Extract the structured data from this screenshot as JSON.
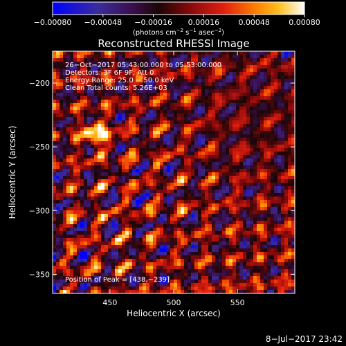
{
  "chart_data": {
    "type": "heatmap",
    "title": "Reconstructed RHESSI Image",
    "xlabel": "Heliocentric X (arcsec)",
    "ylabel": "Heliocentric Y (arcsec)",
    "xlim": [
      405,
      595
    ],
    "ylim": [
      -365,
      -175
    ],
    "x_ticks": [
      450,
      500,
      550
    ],
    "x_tick_labels": [
      "450",
      "500",
      "550"
    ],
    "y_ticks": [
      -200,
      -250,
      -300,
      -350
    ],
    "y_tick_labels": [
      "−200",
      "−250",
      "−300",
      "−350"
    ],
    "colorbar": {
      "min": -0.0008,
      "max": 0.0008,
      "ticks": [
        -0.0008,
        -0.00048,
        -0.00016,
        0.00016,
        0.00048,
        0.0008
      ],
      "tick_labels": [
        "−0.00080",
        "−0.00048",
        "−0.00016",
        "0.00016",
        "0.00048",
        "0.00080"
      ],
      "units_prefix": "(photons cm",
      "units_exp1": "−2",
      "units_mid1": " s",
      "units_exp2": "−1",
      "units_mid2": " asec",
      "units_exp3": "−2",
      "units_suffix": ")"
    },
    "annotations": [
      "26−Oct−2017 05:43:00.000 to 05:53:00.000",
      "Detectors: 3F 6F 9F, Att 0",
      "Energy Range: 25.0 − 50.0 keV",
      "Clean     Total counts: 5.26E+03"
    ],
    "peak_label": "Position of Peak = [438,−239]",
    "peak": [
      438,
      -239
    ]
  },
  "footer": {
    "timestamp": "8−Jul−2017 23:42"
  },
  "colors": {
    "background": "#000000",
    "colormap": [
      "#0000ff",
      "#3c2488",
      "#5a2c82",
      "#3a0a0a",
      "#9a0a10",
      "#e01a10",
      "#ff6a00",
      "#ffb000",
      "#ffe060",
      "#ffffff"
    ]
  }
}
